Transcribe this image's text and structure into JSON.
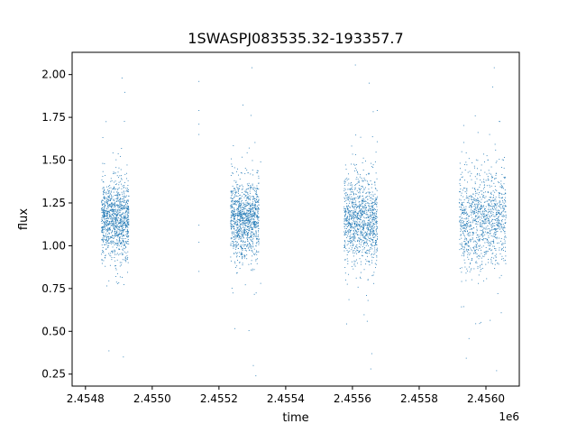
{
  "chart_data": {
    "type": "scatter",
    "title": "1SWASPJ083535.32-193357.7",
    "xlabel": "time",
    "ylabel": "flux",
    "x_offset_label": "1e6",
    "xlim": [
      2454760,
      2456100
    ],
    "ylim": [
      0.18,
      2.13
    ],
    "x_ticks": [
      2454800,
      2455000,
      2455200,
      2455400,
      2455600,
      2455800,
      2456000
    ],
    "x_tick_labels": [
      "2.4548",
      "2.4550",
      "2.4552",
      "2.4554",
      "2.4556",
      "2.4558",
      "2.4560"
    ],
    "y_ticks": [
      0.25,
      0.5,
      0.75,
      1.0,
      1.25,
      1.5,
      1.75,
      2.0
    ],
    "y_tick_labels": [
      "0.25",
      "0.50",
      "0.75",
      "1.00",
      "1.25",
      "1.50",
      "1.75",
      "2.00"
    ],
    "grid": false,
    "marker_color": "#1f77b4",
    "series": [
      {
        "seasons": [
          {
            "x_range": [
              2454848,
              2454930
            ],
            "center": 1.15,
            "spread": 0.11,
            "extremes": [
              0.35,
              1.98
            ]
          },
          {
            "x_range": [
              2455235,
              2455320
            ],
            "center": 1.15,
            "spread": 0.11,
            "extremes": [
              0.3,
              2.04
            ]
          },
          {
            "x_range": [
              2455575,
              2455675
            ],
            "center": 1.15,
            "spread": 0.12,
            "extremes": [
              0.28,
              1.95
            ]
          },
          {
            "x_range": [
              2455920,
              2456060
            ],
            "center": 1.15,
            "spread": 0.14,
            "extremes": [
              0.27,
              2.04
            ]
          }
        ],
        "sparse_points": [
          {
            "x": 2455140,
            "y": 1.96
          },
          {
            "x": 2455140,
            "y": 1.79
          },
          {
            "x": 2455140,
            "y": 1.71
          },
          {
            "x": 2455140,
            "y": 1.65
          },
          {
            "x": 2455140,
            "y": 1.12
          },
          {
            "x": 2455140,
            "y": 1.02
          },
          {
            "x": 2455140,
            "y": 0.85
          },
          {
            "x": 2455325,
            "y": 1.49
          },
          {
            "x": 2455325,
            "y": 0.78
          }
        ]
      }
    ]
  }
}
